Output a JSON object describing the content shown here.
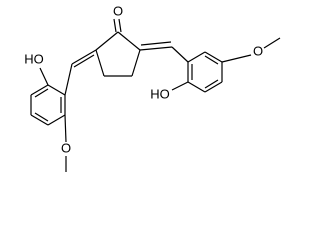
{
  "labels": {
    "ketone_oxygen": "O",
    "left_hydroxyl": "HO",
    "left_methoxy_oxygen": "O",
    "right_hydroxyl": "HO",
    "right_methoxy_oxygen": "O"
  }
}
